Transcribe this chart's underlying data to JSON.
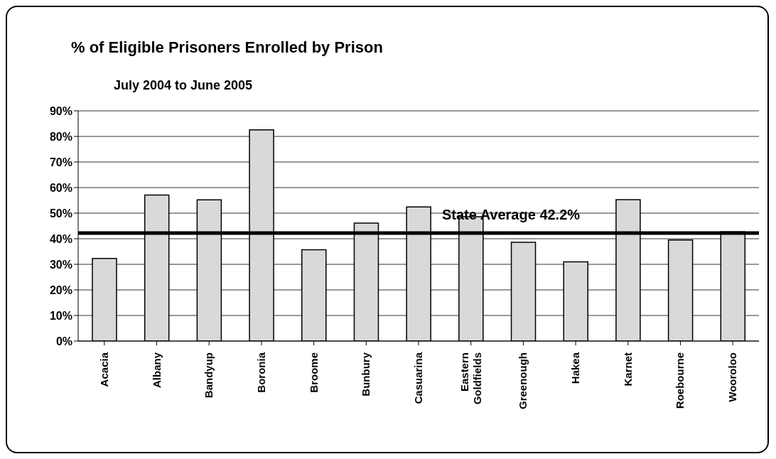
{
  "chart_data": {
    "type": "bar",
    "title": "% of Eligible Prisoners Enrolled by Prison",
    "subtitle": "July 2004 to June 2005",
    "categories": [
      "Acacia",
      "Albany",
      "Bandyup",
      "Boronia",
      "Broome",
      "Bunbury",
      "Casuarina",
      "Eastern Goldfields",
      "Greenough",
      "Hakea",
      "Karnet",
      "Roebourne",
      "Wooroloo"
    ],
    "values": [
      32.3,
      57.1,
      55.2,
      82.6,
      35.7,
      46.1,
      52.4,
      48.6,
      38.6,
      31.0,
      55.3,
      39.5,
      42.7
    ],
    "color": "#d9d9d9",
    "ylim": [
      0,
      90
    ],
    "yticks": [
      {
        "value": 0,
        "label": "0%"
      },
      {
        "value": 10,
        "label": "10%"
      },
      {
        "value": 20,
        "label": "20%"
      },
      {
        "value": 30,
        "label": "30%"
      },
      {
        "value": 40,
        "label": "40%"
      },
      {
        "value": 50,
        "label": "50%"
      },
      {
        "value": 60,
        "label": "60%"
      },
      {
        "value": 70,
        "label": "70%"
      },
      {
        "value": 80,
        "label": "80%"
      },
      {
        "value": 90,
        "label": "90%"
      }
    ],
    "grid": "y",
    "ref_lines": [
      {
        "axis": "y",
        "value": 42.2,
        "label": "State Average 42.2%",
        "color": "#000000"
      }
    ]
  }
}
